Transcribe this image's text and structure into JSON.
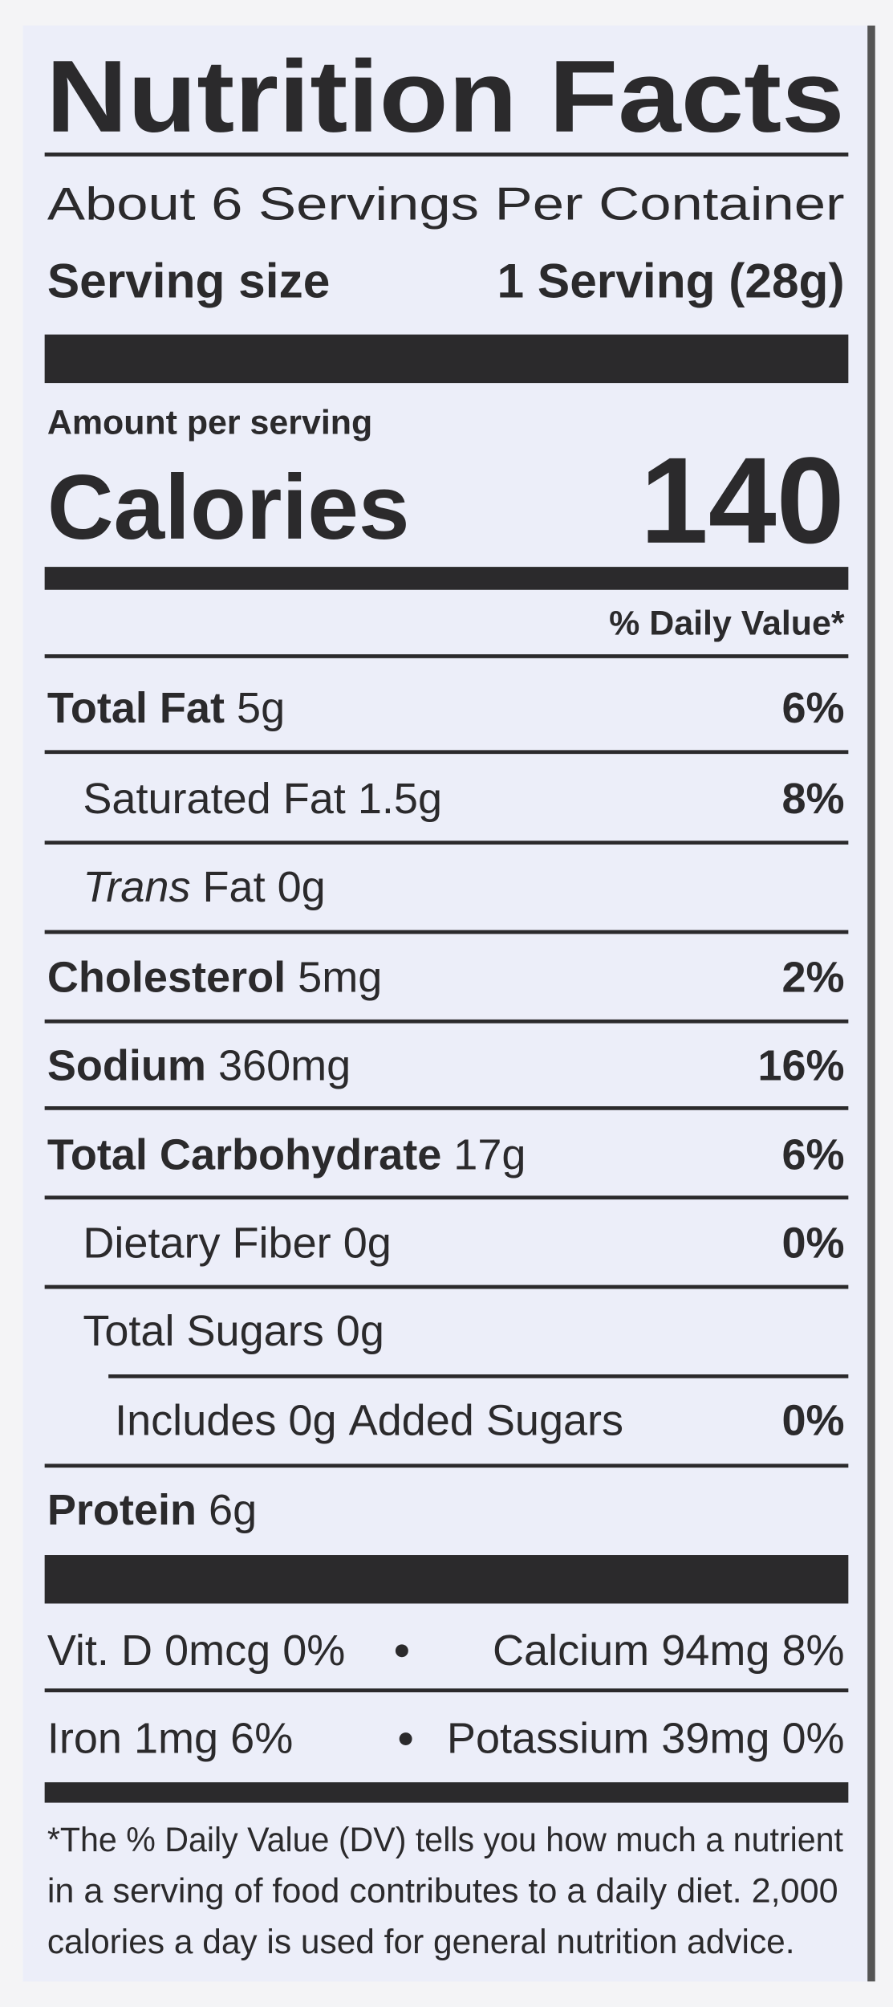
{
  "title": "Nutrition Facts",
  "servings_per_container": "About 6 Servings Per Container",
  "serving_size": {
    "label": "Serving size",
    "value": "1 Serving (28g)"
  },
  "amount_per_serving": "Amount per serving",
  "calories": {
    "label": "Calories",
    "value": "140"
  },
  "daily_value_header": "% Daily Value*",
  "nutrients": [
    {
      "name": "Total Fat",
      "amount": "5g",
      "dv": "6%"
    },
    {
      "name": "Saturated Fat",
      "amount": "1.5g",
      "dv": "8%"
    },
    {
      "name_italic": "Trans",
      "name": "Fat",
      "amount": "0g"
    },
    {
      "name": "Cholesterol",
      "amount": "5mg",
      "dv": "2%"
    },
    {
      "name": "Sodium",
      "amount": "360mg",
      "dv": "16%"
    },
    {
      "name": "Total Carbohydrate",
      "amount": "17g",
      "dv": "6%"
    },
    {
      "name": "Dietary Fiber",
      "amount": "0g",
      "dv": "0%"
    },
    {
      "name": "Total Sugars",
      "amount": "0g"
    },
    {
      "prefix": "Includes",
      "amount": "0g",
      "name": "Added Sugars",
      "dv": "0%"
    },
    {
      "name": "Protein",
      "amount": "6g"
    }
  ],
  "micronutrients": [
    {
      "name": "Vit. D",
      "amount": "0mcg",
      "dv": "0%"
    },
    {
      "name": "Calcium",
      "amount": "94mg",
      "dv": "8%"
    },
    {
      "name": "Iron",
      "amount": "1mg",
      "dv": "6%"
    },
    {
      "name": "Potassium",
      "amount": "39mg",
      "dv": "0%"
    }
  ],
  "footnote": [
    "*The % Daily Value (DV) tells you how much a nutrient",
    "in a serving of food contributes to a daily diet. 2,000",
    "calories a day is used for general nutrition advice."
  ]
}
